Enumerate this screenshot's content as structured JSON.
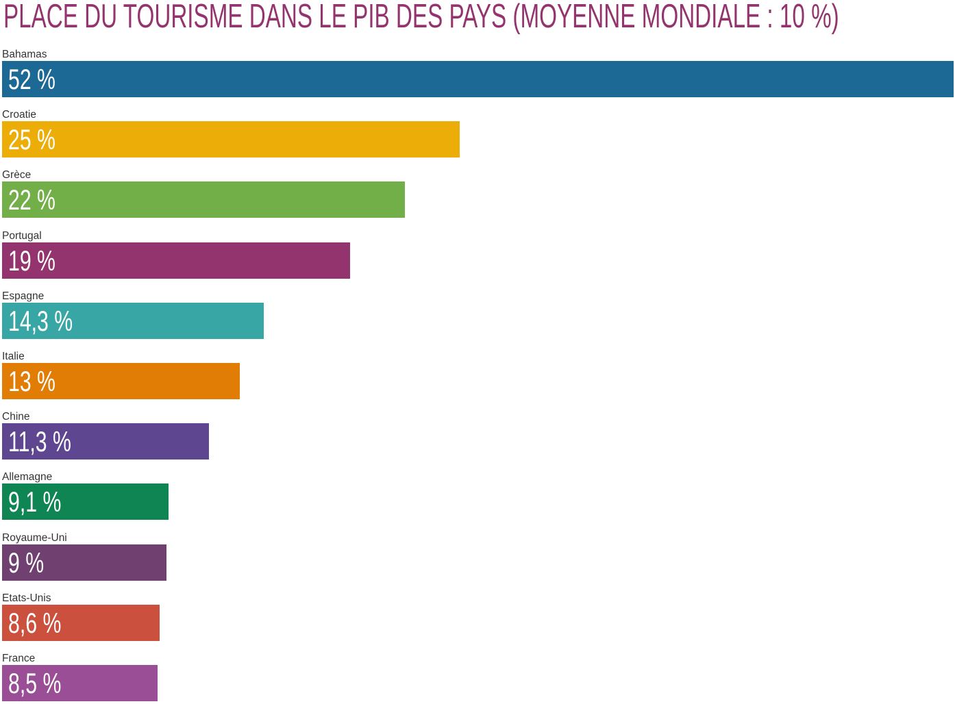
{
  "style": {
    "title_color": "#94346e"
  },
  "chart_data": {
    "type": "bar",
    "horizontal": true,
    "title": "PLACE DU TOURISME DANS LE PIB DES PAYS (MOYENNE MONDIALE : 10 %)",
    "categories": [
      "Bahamas",
      "Croatie",
      "Grèce",
      "Portugal",
      "Espagne",
      "Italie",
      "Chine",
      "Allemagne",
      "Royaume-Uni",
      "Etats-Unis",
      "France"
    ],
    "values": [
      52,
      25,
      22,
      19,
      14.3,
      13,
      11.3,
      9.1,
      9,
      8.6,
      8.5
    ],
    "data_labels": [
      "52 %",
      "25 %",
      "22 %",
      "19 %",
      "14,3 %",
      "13 %",
      "11,3 %",
      "9,1 %",
      "9 %",
      "8,6 %",
      "8,5 %"
    ],
    "colors": [
      "#1d6996",
      "#edad08",
      "#73af48",
      "#94346e",
      "#38a6a5",
      "#e17c05",
      "#5f4690",
      "#0f8554",
      "#6f4070",
      "#cc503e",
      "#994e95"
    ],
    "grid": false,
    "legend": false
  }
}
